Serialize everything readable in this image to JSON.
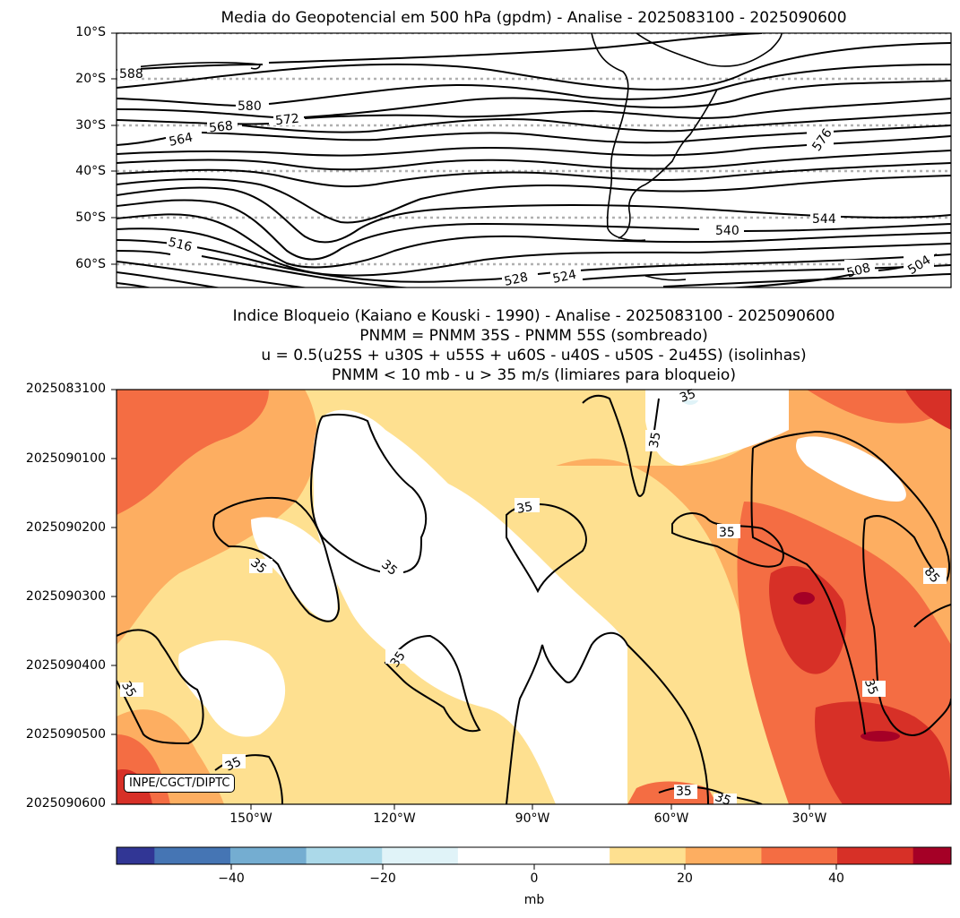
{
  "top_chart": {
    "title": "Media do Geopotencial em 500 hPa (gpdm) - Analise - 2025083100 - 2025090600",
    "y_ticks": [
      "10°S",
      "20°S",
      "30°S",
      "40°S",
      "50°S",
      "60°S"
    ],
    "contour_labels": [
      "588",
      "580",
      "572",
      "568",
      "564",
      "576",
      "544",
      "540",
      "516",
      "528",
      "524",
      "508",
      "504"
    ]
  },
  "bottom_chart": {
    "title_lines": [
      "Indice Bloqueio (Kaiano e Kouski - 1990) - Analise - 2025083100 - 2025090600",
      "PNMM = PNMM 35S - PNMM 55S (sombreado)",
      "u = 0.5(u25S + u30S + u55S + u60S - u40S - u50S - 2u45S) (isolinhas)",
      "PNMM < 10 mb - u > 35 m/s (limiares para bloqueio)"
    ],
    "y_ticks": [
      "2025083100",
      "2025090100",
      "2025090200",
      "2025090300",
      "2025090400",
      "2025090500",
      "2025090600"
    ],
    "x_ticks": [
      "150°W",
      "120°W",
      "90°W",
      "60°W",
      "30°W"
    ],
    "contour_labels": [
      "35",
      "35",
      "35",
      "35",
      "35",
      "35",
      "35",
      "35",
      "35",
      "35",
      "35",
      "35",
      "85"
    ],
    "credit": "INPE/CGCT/DIPTC"
  },
  "colorbar": {
    "ticks": [
      "−40",
      "−20",
      "0",
      "20",
      "40"
    ],
    "label": "mb",
    "colors": [
      "#313695",
      "#4575b4",
      "#74add1",
      "#abd9e9",
      "#e0f3f8",
      "#ffffff",
      "#ffffff",
      "#fee090",
      "#fdae61",
      "#f46d43",
      "#d73027",
      "#a50026"
    ]
  },
  "chart_data": [
    {
      "type": "contour",
      "title": "Media do Geopotencial em 500 hPa (gpdm) - Analise - 2025083100 - 2025090600",
      "variable": "500 hPa geopotential height (gpdm)",
      "latitude_range": [
        "10°S",
        "65°S"
      ],
      "longitude_range": [
        "180°W",
        "0°"
      ],
      "contour_levels_labeled": [
        588,
        580,
        576,
        572,
        568,
        564,
        544,
        540,
        528,
        524,
        516,
        508,
        504
      ],
      "gridlines": "dotted latitude lines every 10°"
    },
    {
      "type": "heatmap",
      "title": "Indice Bloqueio (Kaiano e Kouski - 1990) - Analise - 2025083100 - 2025090600",
      "x_axis": "longitude",
      "x_ticks": [
        "150°W",
        "120°W",
        "90°W",
        "60°W",
        "30°W"
      ],
      "y_axis": "date (YYYYMMDDHH)",
      "y_ticks": [
        "2025083100",
        "2025090100",
        "2025090200",
        "2025090300",
        "2025090400",
        "2025090500",
        "2025090600"
      ],
      "shading": "PNMM 35S - PNMM 55S (mb)",
      "colorbar_range": [
        -55,
        55
      ],
      "colorbar_ticks": [
        -40,
        -20,
        0,
        20,
        40
      ],
      "contour_variable": "u index (m/s)",
      "contour_level": 35,
      "max_shading_region": "around 10°W-40°W, 2025090300-2025090500, > 50 mb"
    }
  ]
}
